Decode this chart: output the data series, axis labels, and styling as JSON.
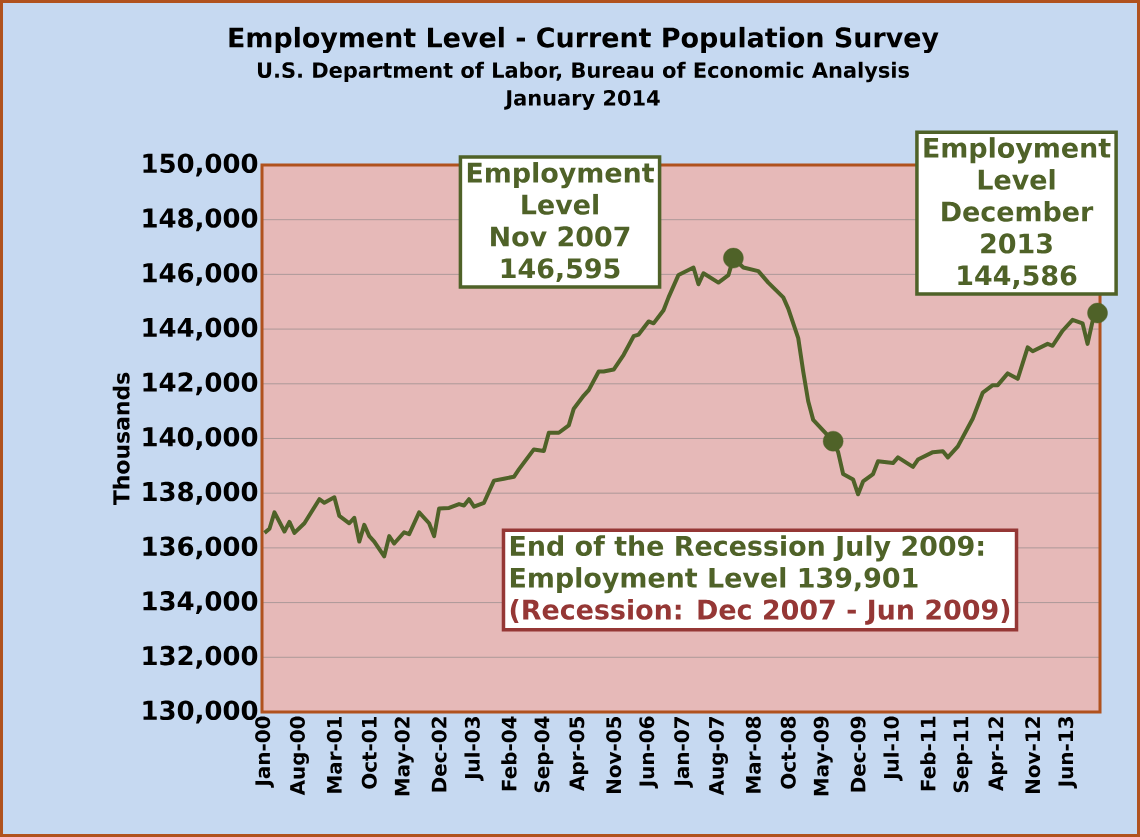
{
  "chart_data": {
    "type": "line",
    "title": "Employment Level - Current Population Survey",
    "subtitle": "U.S. Department of Labor, Bureau of Economic Analysis",
    "ylabel": "Thousands",
    "xlim": [
      "1999-12-16",
      "2013-12-16"
    ],
    "ylim": [
      130000,
      150000
    ],
    "yticks": [
      {
        "value": 130000,
        "label": "130,000"
      },
      {
        "value": 132000,
        "label": "132,000"
      },
      {
        "value": 134000,
        "label": "134,000"
      },
      {
        "value": 136000,
        "label": "136,000"
      },
      {
        "value": 138000,
        "label": "138,000"
      },
      {
        "value": 140000,
        "label": "140,000"
      },
      {
        "value": 142000,
        "label": "142,000"
      },
      {
        "value": 144000,
        "label": "144,000"
      },
      {
        "value": 146000,
        "label": "146,000"
      },
      {
        "value": 148000,
        "label": "148,000"
      },
      {
        "value": 150000,
        "label": "150,000"
      }
    ],
    "xticks": [
      {
        "value": "2000-01",
        "label": "Jan-00"
      },
      {
        "value": "2000-08",
        "label": "Aug-00"
      },
      {
        "value": "2001-03",
        "label": "Mar-01"
      },
      {
        "value": "2001-10",
        "label": "Oct-01"
      },
      {
        "value": "2002-05",
        "label": "May-02"
      },
      {
        "value": "2002-12",
        "label": "Dec-02"
      },
      {
        "value": "2003-07",
        "label": "Jul-03"
      },
      {
        "value": "2004-02",
        "label": "Feb-04"
      },
      {
        "value": "2004-09",
        "label": "Sep-04"
      },
      {
        "value": "2005-04",
        "label": "Apr-05"
      },
      {
        "value": "2005-11",
        "label": "Nov-05"
      },
      {
        "value": "2006-06",
        "label": "Jun-06"
      },
      {
        "value": "2007-01",
        "label": "Jan-07"
      },
      {
        "value": "2007-08",
        "label": "Aug-07"
      },
      {
        "value": "2008-03",
        "label": "Mar-08"
      },
      {
        "value": "2008-10",
        "label": "Oct-08"
      },
      {
        "value": "2009-05",
        "label": "May-09"
      },
      {
        "value": "2009-12",
        "label": "Dec-09"
      },
      {
        "value": "2010-07",
        "label": "Jul-10"
      },
      {
        "value": "2011-02",
        "label": "Feb-11"
      },
      {
        "value": "2011-09",
        "label": "Sep-11"
      },
      {
        "value": "2012-04",
        "label": "Apr-12"
      },
      {
        "value": "2012-11",
        "label": "Nov-12"
      },
      {
        "value": "2013-06",
        "label": "Jun-13"
      }
    ],
    "grid": "y",
    "series": [
      {
        "type": "line",
        "color": "#4f6228",
        "marker": "none",
        "line_style": "solid",
        "x": [
          "2000-01",
          "2000-02",
          "2000-03",
          "2000-05",
          "2000-06",
          "2000-07",
          "2000-09",
          "2000-12",
          "2001-01",
          "2001-03",
          "2001-04",
          "2001-06",
          "2001-07",
          "2001-08",
          "2001-09",
          "2001-10",
          "2001-11",
          "2002-01",
          "2002-02",
          "2002-03",
          "2002-05",
          "2002-06",
          "2002-08",
          "2002-10",
          "2002-11",
          "2002-12",
          "2003-02",
          "2003-04",
          "2003-05",
          "2003-06",
          "2003-07",
          "2003-09",
          "2003-11",
          "2004-01",
          "2004-03",
          "2004-04",
          "2004-07",
          "2004-09",
          "2004-10",
          "2004-12",
          "2005-02",
          "2005-03",
          "2005-05",
          "2005-06",
          "2005-08",
          "2005-09",
          "2005-11",
          "2006-01",
          "2006-03",
          "2006-04",
          "2006-06",
          "2006-07",
          "2006-09",
          "2006-10",
          "2006-12",
          "2007-03",
          "2007-04",
          "2007-05",
          "2007-08",
          "2007-10",
          "2007-11",
          "2008-01",
          "2008-04",
          "2008-06",
          "2008-09",
          "2008-10",
          "2008-12",
          "2009-01",
          "2009-02",
          "2009-03",
          "2009-07",
          "2009-08",
          "2009-09",
          "2009-11",
          "2009-12",
          "2010-01",
          "2010-03",
          "2010-04",
          "2010-07",
          "2010-08",
          "2010-11",
          "2010-12",
          "2011-03",
          "2011-05",
          "2011-06",
          "2011-08",
          "2011-10",
          "2011-11",
          "2012-01",
          "2012-03",
          "2012-04",
          "2012-06",
          "2012-08",
          "2012-10",
          "2012-11",
          "2013-02",
          "2013-03",
          "2013-05",
          "2013-07",
          "2013-09",
          "2013-10",
          "2013-11",
          "2013-12"
        ],
        "values": [
          136550,
          136700,
          137300,
          136600,
          136950,
          136550,
          136900,
          137780,
          137650,
          137850,
          137170,
          136900,
          137100,
          136230,
          136840,
          136430,
          136230,
          135690,
          136430,
          136160,
          136570,
          136500,
          137300,
          136900,
          136430,
          137440,
          137460,
          137600,
          137550,
          137780,
          137510,
          137650,
          138460,
          138530,
          138600,
          138870,
          139600,
          139540,
          140210,
          140210,
          140480,
          141090,
          141570,
          141770,
          142450,
          142450,
          142520,
          143060,
          143740,
          143800,
          144280,
          144210,
          144690,
          145160,
          145980,
          146250,
          145640,
          146040,
          145700,
          145970,
          146595,
          146250,
          146120,
          145700,
          145160,
          144750,
          143670,
          142450,
          141360,
          140680,
          139901,
          139500,
          138700,
          138500,
          137960,
          138430,
          138700,
          139170,
          139100,
          139310,
          138960,
          139230,
          139500,
          139530,
          139310,
          139710,
          140390,
          140730,
          141680,
          141950,
          141950,
          142380,
          142180,
          143330,
          143190,
          143460,
          143390,
          143940,
          144340,
          144210,
          143460,
          144280,
          144586
        ]
      },
      {
        "type": "scatter",
        "color": "#4f6228",
        "marker": "circle",
        "x": [
          "2007-11",
          "2009-07",
          "2013-12"
        ],
        "values": [
          146595,
          139901,
          144586
        ]
      }
    ],
    "annotations": [
      "January 2014",
      "Employment\nLevel\nNov 2007\n146,595",
      "End of the Recession July 2009:\nEmployment Level 139,901",
      "(Recession: Dec 2007 - Jun 2009)",
      {
        "text": "Employment\nLevel\nDecember\n2013\n144,586",
        "x": "2013-12",
        "y": 144586
      }
    ]
  }
}
